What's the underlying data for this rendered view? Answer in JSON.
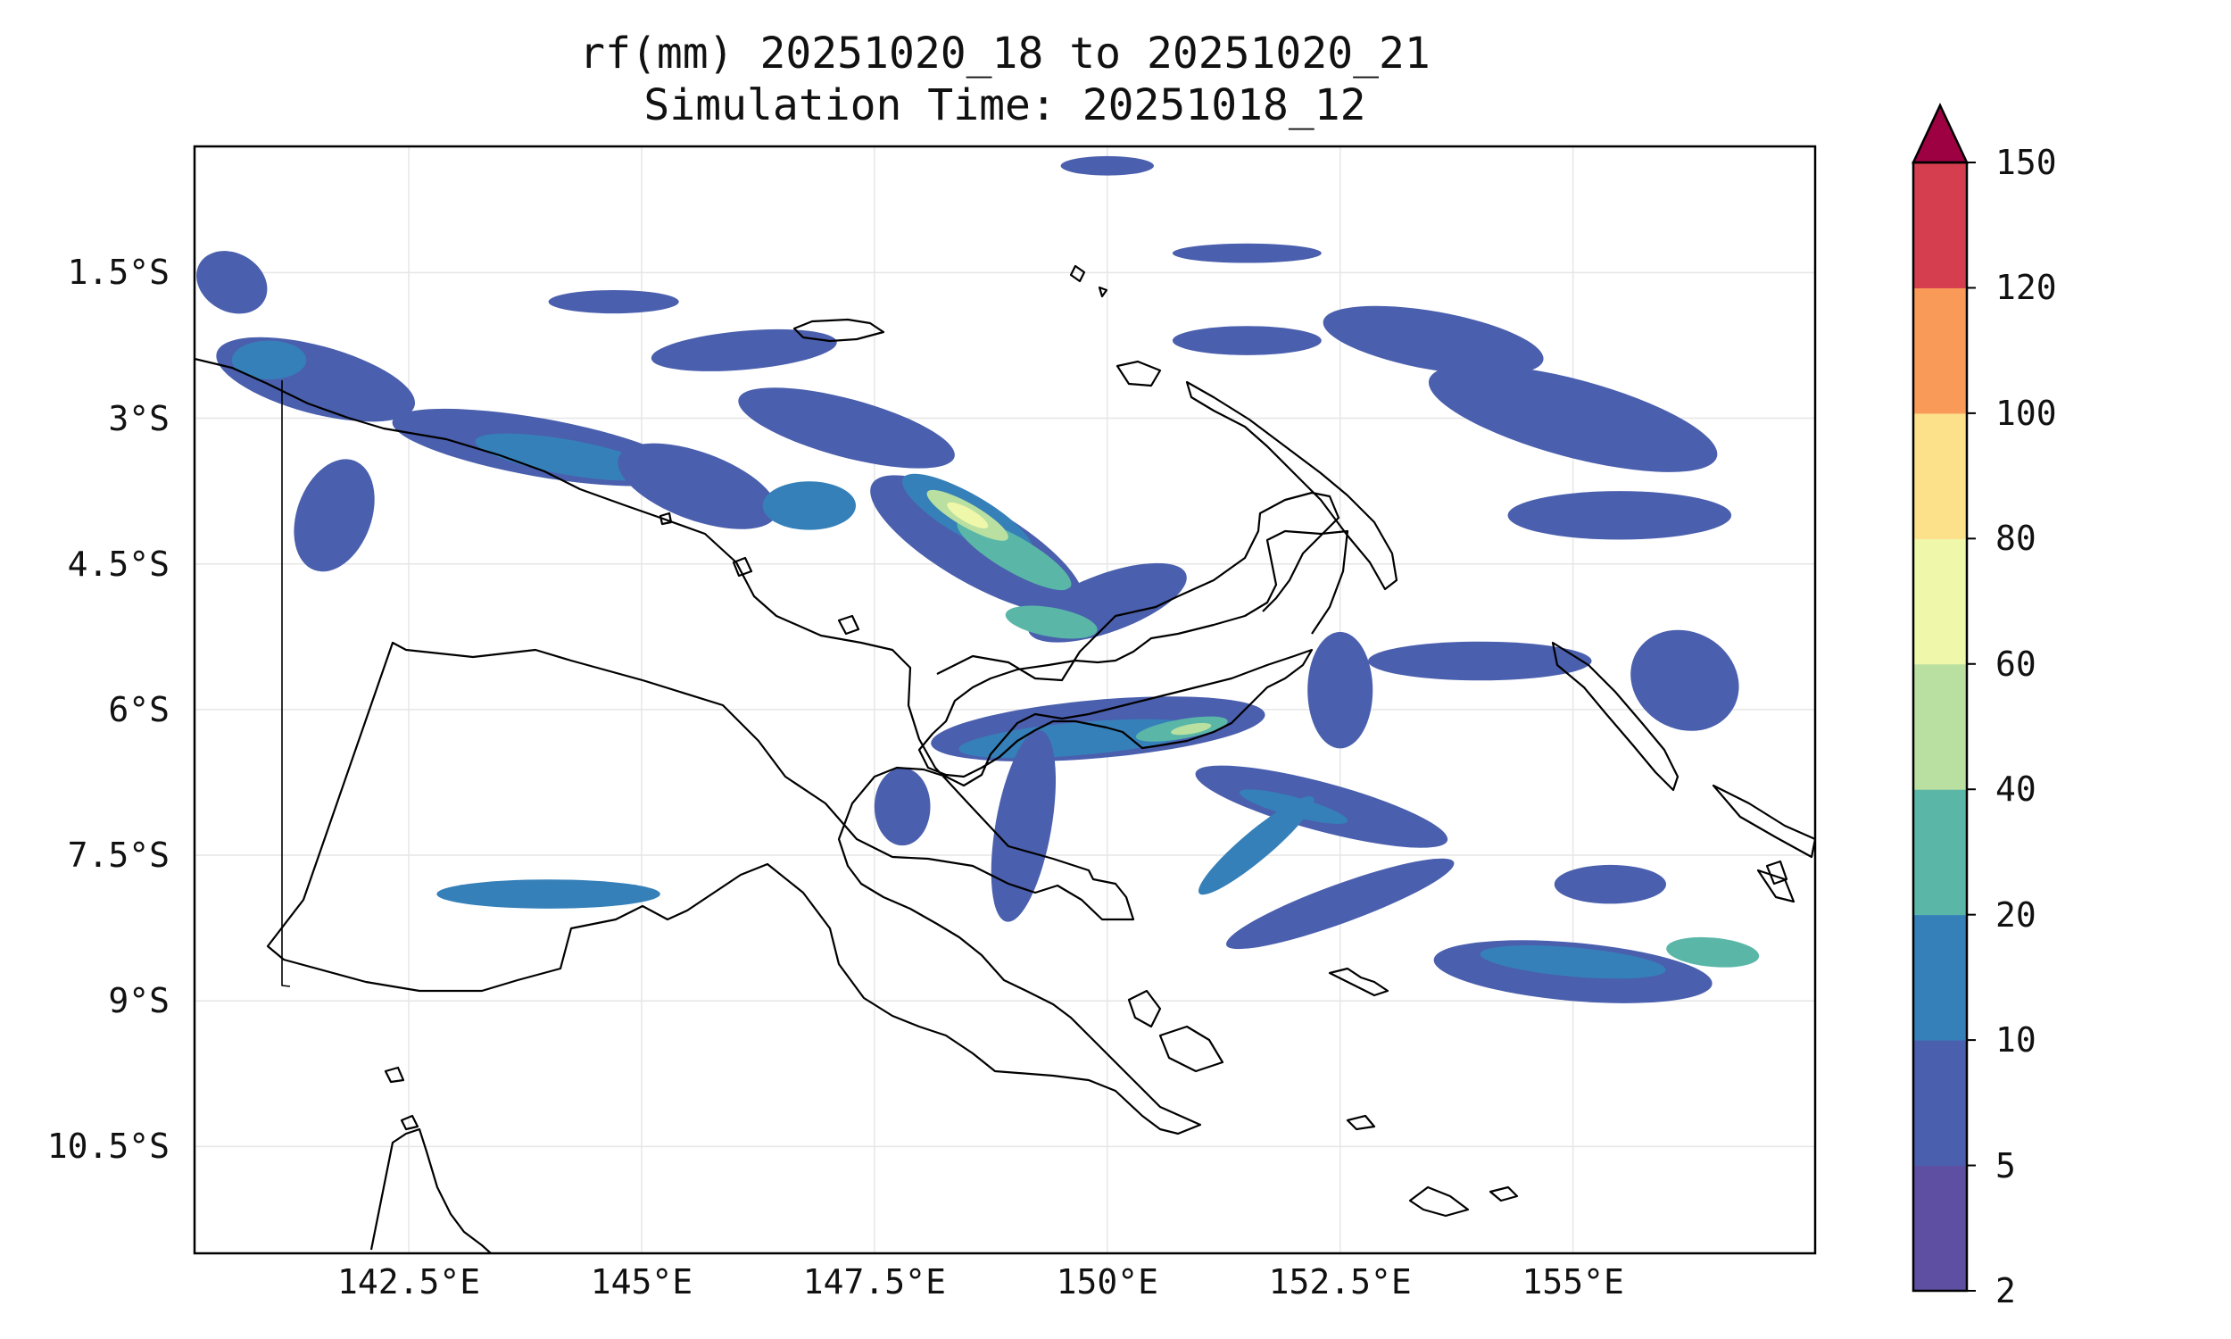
{
  "title": {
    "line1": "rf(mm) 20251020_18 to 20251020_21",
    "line2": "Simulation Time: 20251018_12"
  },
  "map": {
    "variable": "rf(mm)",
    "extent": {
      "lon_min": 140.2,
      "lon_max": 157.6,
      "lat_min": -11.6,
      "lat_max": -0.2
    },
    "lat_ticks": [
      {
        "value": -1.5,
        "label": "1.5°S"
      },
      {
        "value": -3.0,
        "label": "3°S"
      },
      {
        "value": -4.5,
        "label": "4.5°S"
      },
      {
        "value": -6.0,
        "label": "6°S"
      },
      {
        "value": -7.5,
        "label": "7.5°S"
      },
      {
        "value": -9.0,
        "label": "9°S"
      },
      {
        "value": -10.5,
        "label": "10.5°S"
      }
    ],
    "lon_ticks": [
      {
        "value": 142.5,
        "label": "142.5°E"
      },
      {
        "value": 145.0,
        "label": "145°E"
      },
      {
        "value": 147.5,
        "label": "147.5°E"
      },
      {
        "value": 150.0,
        "label": "150°E"
      },
      {
        "value": 152.5,
        "label": "152.5°E"
      },
      {
        "value": 155.0,
        "label": "155°E"
      }
    ],
    "gridlines": true,
    "coastlines": true,
    "rain_features": [
      {
        "lon": 141.5,
        "lat": -2.6,
        "rx": 1.1,
        "ry": 0.35,
        "rot": 15,
        "level": 1
      },
      {
        "lon": 141.0,
        "lat": -2.4,
        "rx": 0.4,
        "ry": 0.2,
        "rot": 0,
        "level": 2
      },
      {
        "lon": 140.6,
        "lat": -1.6,
        "rx": 0.4,
        "ry": 0.3,
        "rot": 30,
        "level": 1
      },
      {
        "lon": 141.7,
        "lat": -4.0,
        "rx": 0.4,
        "ry": 0.6,
        "rot": 20,
        "level": 1
      },
      {
        "lon": 143.9,
        "lat": -3.3,
        "rx": 1.6,
        "ry": 0.3,
        "rot": 10,
        "level": 1
      },
      {
        "lon": 144.2,
        "lat": -3.4,
        "rx": 1.0,
        "ry": 0.18,
        "rot": 10,
        "level": 2
      },
      {
        "lon": 145.6,
        "lat": -3.7,
        "rx": 0.9,
        "ry": 0.35,
        "rot": 20,
        "level": 1
      },
      {
        "lon": 146.1,
        "lat": -2.3,
        "rx": 1.0,
        "ry": 0.2,
        "rot": -5,
        "level": 1
      },
      {
        "lon": 147.2,
        "lat": -3.1,
        "rx": 1.2,
        "ry": 0.3,
        "rot": 15,
        "level": 1
      },
      {
        "lon": 146.8,
        "lat": -3.9,
        "rx": 0.5,
        "ry": 0.25,
        "rot": 0,
        "level": 2
      },
      {
        "lon": 148.6,
        "lat": -4.3,
        "rx": 1.3,
        "ry": 0.4,
        "rot": 30,
        "level": 1
      },
      {
        "lon": 148.5,
        "lat": -4.0,
        "rx": 0.8,
        "ry": 0.22,
        "rot": 30,
        "level": 2
      },
      {
        "lon": 149.0,
        "lat": -4.4,
        "rx": 0.7,
        "ry": 0.18,
        "rot": 30,
        "level": 3
      },
      {
        "lon": 148.5,
        "lat": -4.0,
        "rx": 0.5,
        "ry": 0.12,
        "rot": 30,
        "level": 4
      },
      {
        "lon": 148.5,
        "lat": -4.0,
        "rx": 0.25,
        "ry": 0.07,
        "rot": 30,
        "level": 5
      },
      {
        "lon": 150.0,
        "lat": -4.9,
        "rx": 0.9,
        "ry": 0.3,
        "rot": -20,
        "level": 1
      },
      {
        "lon": 149.4,
        "lat": -5.1,
        "rx": 0.5,
        "ry": 0.15,
        "rot": 10,
        "level": 3
      },
      {
        "lon": 149.9,
        "lat": -6.2,
        "rx": 1.8,
        "ry": 0.3,
        "rot": -5,
        "level": 1
      },
      {
        "lon": 149.7,
        "lat": -6.3,
        "rx": 1.3,
        "ry": 0.17,
        "rot": -5,
        "level": 2
      },
      {
        "lon": 150.8,
        "lat": -6.2,
        "rx": 0.5,
        "ry": 0.1,
        "rot": -10,
        "level": 3
      },
      {
        "lon": 150.9,
        "lat": -6.2,
        "rx": 0.22,
        "ry": 0.05,
        "rot": -10,
        "level": 4
      },
      {
        "lon": 149.1,
        "lat": -7.2,
        "rx": 0.3,
        "ry": 1.0,
        "rot": 10,
        "level": 1
      },
      {
        "lon": 147.8,
        "lat": -7.0,
        "rx": 0.3,
        "ry": 0.4,
        "rot": 0,
        "level": 1
      },
      {
        "lon": 152.3,
        "lat": -7.0,
        "rx": 1.4,
        "ry": 0.25,
        "rot": 15,
        "level": 1
      },
      {
        "lon": 152.0,
        "lat": -7.0,
        "rx": 0.6,
        "ry": 0.1,
        "rot": 15,
        "level": 2
      },
      {
        "lon": 151.6,
        "lat": -7.4,
        "rx": 0.8,
        "ry": 0.15,
        "rot": -40,
        "level": 2
      },
      {
        "lon": 152.5,
        "lat": -8.0,
        "rx": 1.3,
        "ry": 0.2,
        "rot": -20,
        "level": 1
      },
      {
        "lon": 155.0,
        "lat": -8.7,
        "rx": 1.5,
        "ry": 0.3,
        "rot": 5,
        "level": 1
      },
      {
        "lon": 155.0,
        "lat": -8.6,
        "rx": 1.0,
        "ry": 0.15,
        "rot": 5,
        "level": 2
      },
      {
        "lon": 156.5,
        "lat": -8.5,
        "rx": 0.5,
        "ry": 0.15,
        "rot": 5,
        "level": 3
      },
      {
        "lon": 155.4,
        "lat": -7.8,
        "rx": 0.6,
        "ry": 0.2,
        "rot": 0,
        "level": 1
      },
      {
        "lon": 144.0,
        "lat": -7.9,
        "rx": 1.2,
        "ry": 0.15,
        "rot": 0,
        "level": 2
      },
      {
        "lon": 152.5,
        "lat": -5.8,
        "rx": 0.35,
        "ry": 0.6,
        "rot": 0,
        "level": 1
      },
      {
        "lon": 154.0,
        "lat": -5.5,
        "rx": 1.2,
        "ry": 0.2,
        "rot": 0,
        "level": 1
      },
      {
        "lon": 156.2,
        "lat": -5.7,
        "rx": 0.6,
        "ry": 0.5,
        "rot": 30,
        "level": 1
      },
      {
        "lon": 155.5,
        "lat": -4.0,
        "rx": 1.2,
        "ry": 0.25,
        "rot": 0,
        "level": 1
      },
      {
        "lon": 155.0,
        "lat": -3.0,
        "rx": 1.6,
        "ry": 0.4,
        "rot": 15,
        "level": 1
      },
      {
        "lon": 153.5,
        "lat": -2.2,
        "rx": 1.2,
        "ry": 0.3,
        "rot": 10,
        "level": 1
      },
      {
        "lon": 151.5,
        "lat": -2.2,
        "rx": 0.8,
        "ry": 0.15,
        "rot": 0,
        "level": 1
      },
      {
        "lon": 150.0,
        "lat": -0.4,
        "rx": 0.5,
        "ry": 0.1,
        "rot": 0,
        "level": 1
      },
      {
        "lon": 151.5,
        "lat": -1.3,
        "rx": 0.8,
        "ry": 0.1,
        "rot": 0,
        "level": 1
      },
      {
        "lon": 144.7,
        "lat": -1.8,
        "rx": 0.7,
        "ry": 0.12,
        "rot": 0,
        "level": 1
      }
    ]
  },
  "colorbar": {
    "levels": [
      {
        "value": 2,
        "label": "2",
        "color": "#5e4fa2"
      },
      {
        "value": 5,
        "label": "5",
        "color": "#4a5fad"
      },
      {
        "value": 10,
        "label": "10",
        "color": "#3680b9"
      },
      {
        "value": 20,
        "label": "20",
        "color": "#5ab7a8"
      },
      {
        "value": 40,
        "label": "40",
        "color": "#b9e0a1"
      },
      {
        "value": 60,
        "label": "60",
        "color": "#eff7aa"
      },
      {
        "value": 80,
        "label": "80",
        "color": "#fce08a"
      },
      {
        "value": 100,
        "label": "100",
        "color": "#f99a58"
      },
      {
        "value": 120,
        "label": "120",
        "color": "#d53e4f"
      },
      {
        "value": 150,
        "label": "150",
        "color": "#9e0142"
      }
    ],
    "extend": "max"
  }
}
